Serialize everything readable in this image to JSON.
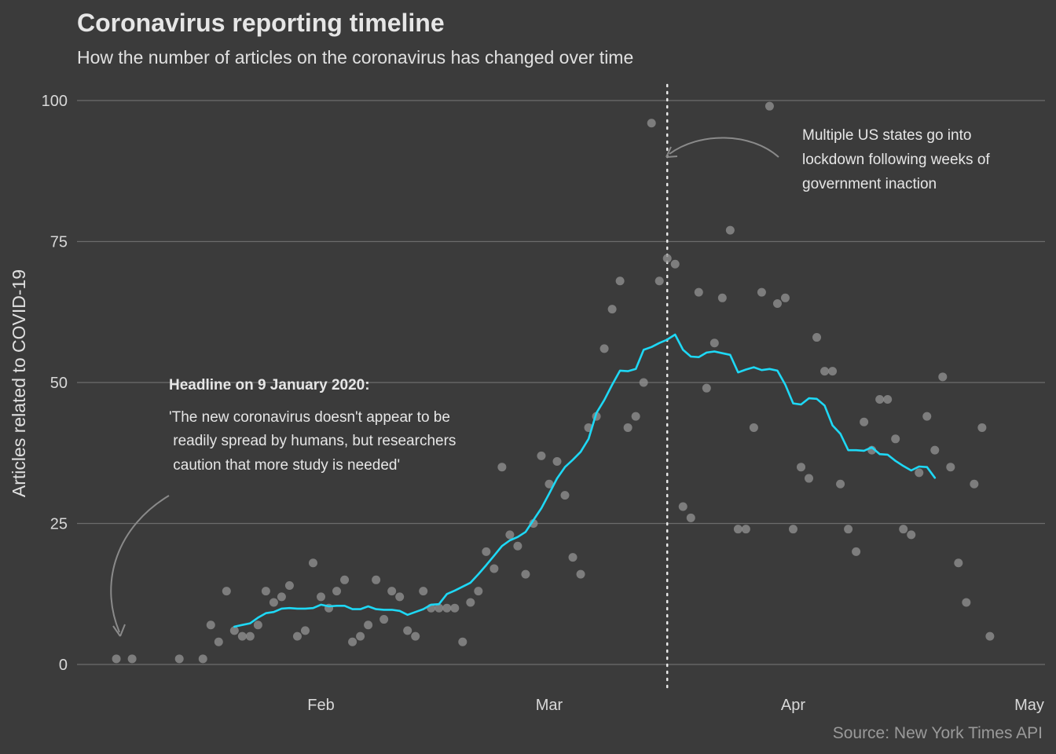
{
  "chart_data": {
    "type": "scatter",
    "title": "Coronavirus reporting timeline",
    "subtitle": "How the number of articles on the coronavirus has changed over time",
    "ylabel": "Articles related to COVID-19",
    "xlabel": "",
    "ylim": [
      0,
      100
    ],
    "yticks": [
      "0",
      "25",
      "50",
      "75",
      "100"
    ],
    "xticks": [
      {
        "label": "Feb",
        "date": "2020-02-01"
      },
      {
        "label": "Mar",
        "date": "2020-03-01"
      },
      {
        "label": "Apr",
        "date": "2020-04-01"
      },
      {
        "label": "May",
        "date": "2020-05-01"
      }
    ],
    "xlim": [
      "2020-01-01",
      "2020-05-03"
    ],
    "grid": true,
    "colors": {
      "background": "#3b3b3b",
      "points": "#8f8f8f",
      "line": "#1ed8f5",
      "grid": "#6c6c6c",
      "text": "#e6e6e6",
      "caption": "#9a9a9a"
    },
    "series": [
      {
        "kind": "points",
        "points": [
          [
            "2020-01-06",
            1
          ],
          [
            "2020-01-08",
            1
          ],
          [
            "2020-01-14",
            1
          ],
          [
            "2020-01-17",
            1
          ],
          [
            "2020-01-18",
            7
          ],
          [
            "2020-01-19",
            4
          ],
          [
            "2020-01-20",
            13
          ],
          [
            "2020-01-21",
            6
          ],
          [
            "2020-01-22",
            5
          ],
          [
            "2020-01-23",
            5
          ],
          [
            "2020-01-24",
            7
          ],
          [
            "2020-01-25",
            13
          ],
          [
            "2020-01-26",
            11
          ],
          [
            "2020-01-27",
            12
          ],
          [
            "2020-01-28",
            14
          ],
          [
            "2020-01-29",
            5
          ],
          [
            "2020-01-30",
            6
          ],
          [
            "2020-01-31",
            18
          ],
          [
            "2020-02-01",
            12
          ],
          [
            "2020-02-02",
            10
          ],
          [
            "2020-02-03",
            13
          ],
          [
            "2020-02-04",
            15
          ],
          [
            "2020-02-05",
            4
          ],
          [
            "2020-02-06",
            5
          ],
          [
            "2020-02-07",
            7
          ],
          [
            "2020-02-08",
            15
          ],
          [
            "2020-02-09",
            8
          ],
          [
            "2020-02-10",
            13
          ],
          [
            "2020-02-11",
            12
          ],
          [
            "2020-02-12",
            6
          ],
          [
            "2020-02-13",
            5
          ],
          [
            "2020-02-14",
            13
          ],
          [
            "2020-02-15",
            10
          ],
          [
            "2020-02-16",
            10
          ],
          [
            "2020-02-17",
            10
          ],
          [
            "2020-02-18",
            10
          ],
          [
            "2020-02-19",
            4
          ],
          [
            "2020-02-20",
            11
          ],
          [
            "2020-02-21",
            13
          ],
          [
            "2020-02-22",
            20
          ],
          [
            "2020-02-23",
            17
          ],
          [
            "2020-02-24",
            35
          ],
          [
            "2020-02-25",
            23
          ],
          [
            "2020-02-26",
            21
          ],
          [
            "2020-02-27",
            16
          ],
          [
            "2020-02-28",
            25
          ],
          [
            "2020-02-29",
            37
          ],
          [
            "2020-03-01",
            32
          ],
          [
            "2020-03-02",
            36
          ],
          [
            "2020-03-03",
            30
          ],
          [
            "2020-03-04",
            19
          ],
          [
            "2020-03-05",
            16
          ],
          [
            "2020-03-06",
            42
          ],
          [
            "2020-03-07",
            44
          ],
          [
            "2020-03-08",
            56
          ],
          [
            "2020-03-09",
            63
          ],
          [
            "2020-03-10",
            68
          ],
          [
            "2020-03-11",
            42
          ],
          [
            "2020-03-12",
            44
          ],
          [
            "2020-03-13",
            50
          ],
          [
            "2020-03-14",
            96
          ],
          [
            "2020-03-15",
            68
          ],
          [
            "2020-03-16",
            72
          ],
          [
            "2020-03-17",
            71
          ],
          [
            "2020-03-18",
            28
          ],
          [
            "2020-03-19",
            26
          ],
          [
            "2020-03-20",
            66
          ],
          [
            "2020-03-21",
            49
          ],
          [
            "2020-03-22",
            57
          ],
          [
            "2020-03-23",
            65
          ],
          [
            "2020-03-24",
            77
          ],
          [
            "2020-03-25",
            24
          ],
          [
            "2020-03-26",
            24
          ],
          [
            "2020-03-27",
            42
          ],
          [
            "2020-03-28",
            66
          ],
          [
            "2020-03-29",
            99
          ],
          [
            "2020-03-30",
            64
          ],
          [
            "2020-03-31",
            65
          ],
          [
            "2020-04-01",
            24
          ],
          [
            "2020-04-02",
            35
          ],
          [
            "2020-04-03",
            33
          ],
          [
            "2020-04-04",
            58
          ],
          [
            "2020-04-05",
            52
          ],
          [
            "2020-04-06",
            52
          ],
          [
            "2020-04-07",
            32
          ],
          [
            "2020-04-08",
            24
          ],
          [
            "2020-04-09",
            20
          ],
          [
            "2020-04-10",
            43
          ],
          [
            "2020-04-11",
            38
          ],
          [
            "2020-04-12",
            47
          ],
          [
            "2020-04-13",
            47
          ],
          [
            "2020-04-14",
            40
          ],
          [
            "2020-04-15",
            24
          ],
          [
            "2020-04-16",
            23
          ],
          [
            "2020-04-17",
            34
          ],
          [
            "2020-04-18",
            44
          ],
          [
            "2020-04-19",
            38
          ],
          [
            "2020-04-20",
            51
          ],
          [
            "2020-04-21",
            35
          ],
          [
            "2020-04-22",
            18
          ],
          [
            "2020-04-23",
            11
          ],
          [
            "2020-04-24",
            32
          ],
          [
            "2020-04-25",
            42
          ],
          [
            "2020-04-26",
            5
          ]
        ]
      },
      {
        "kind": "line",
        "points": [
          [
            "2020-01-21",
            6.7
          ],
          [
            "2020-01-22",
            7.0
          ],
          [
            "2020-01-23",
            7.3
          ],
          [
            "2020-01-24",
            8.3
          ],
          [
            "2020-01-25",
            9.1
          ],
          [
            "2020-01-26",
            9.3
          ],
          [
            "2020-01-27",
            9.9
          ],
          [
            "2020-01-28",
            10.0
          ],
          [
            "2020-01-29",
            9.9
          ],
          [
            "2020-01-30",
            9.9
          ],
          [
            "2020-01-31",
            10.0
          ],
          [
            "2020-02-01",
            10.6
          ],
          [
            "2020-02-02",
            10.3
          ],
          [
            "2020-02-03",
            10.4
          ],
          [
            "2020-02-04",
            10.4
          ],
          [
            "2020-02-05",
            9.8
          ],
          [
            "2020-02-06",
            9.8
          ],
          [
            "2020-02-07",
            10.3
          ],
          [
            "2020-02-08",
            9.8
          ],
          [
            "2020-02-09",
            9.7
          ],
          [
            "2020-02-10",
            9.7
          ],
          [
            "2020-02-11",
            9.5
          ],
          [
            "2020-02-12",
            8.8
          ],
          [
            "2020-02-13",
            9.3
          ],
          [
            "2020-02-14",
            9.8
          ],
          [
            "2020-02-15",
            10.6
          ],
          [
            "2020-02-16",
            10.7
          ],
          [
            "2020-02-17",
            12.5
          ],
          [
            "2020-02-18",
            13.1
          ],
          [
            "2020-02-19",
            13.8
          ],
          [
            "2020-02-20",
            14.5
          ],
          [
            "2020-02-21",
            16.0
          ],
          [
            "2020-02-22",
            17.6
          ],
          [
            "2020-02-23",
            19.3
          ],
          [
            "2020-02-24",
            21.0
          ],
          [
            "2020-02-25",
            22.0
          ],
          [
            "2020-02-26",
            22.6
          ],
          [
            "2020-02-27",
            23.5
          ],
          [
            "2020-02-28",
            25.6
          ],
          [
            "2020-02-29",
            27.7
          ],
          [
            "2020-03-01",
            30.3
          ],
          [
            "2020-03-02",
            33.0
          ],
          [
            "2020-03-03",
            35.0
          ],
          [
            "2020-03-04",
            36.3
          ],
          [
            "2020-03-05",
            37.7
          ],
          [
            "2020-03-06",
            40.0
          ],
          [
            "2020-03-07",
            44.6
          ],
          [
            "2020-03-08",
            46.9
          ],
          [
            "2020-03-09",
            49.6
          ],
          [
            "2020-03-10",
            52.1
          ],
          [
            "2020-03-11",
            52.0
          ],
          [
            "2020-03-12",
            52.4
          ],
          [
            "2020-03-13",
            55.8
          ],
          [
            "2020-03-14",
            56.3
          ],
          [
            "2020-03-15",
            57.0
          ],
          [
            "2020-03-16",
            57.6
          ],
          [
            "2020-03-17",
            58.5
          ],
          [
            "2020-03-18",
            55.8
          ],
          [
            "2020-03-19",
            54.6
          ],
          [
            "2020-03-20",
            54.5
          ],
          [
            "2020-03-21",
            55.3
          ],
          [
            "2020-03-22",
            55.5
          ],
          [
            "2020-03-23",
            55.2
          ],
          [
            "2020-03-24",
            54.9
          ],
          [
            "2020-03-25",
            51.8
          ],
          [
            "2020-03-26",
            52.3
          ],
          [
            "2020-03-27",
            52.7
          ],
          [
            "2020-03-28",
            52.2
          ],
          [
            "2020-03-29",
            52.4
          ],
          [
            "2020-03-30",
            52.1
          ],
          [
            "2020-03-31",
            49.6
          ],
          [
            "2020-04-01",
            46.3
          ],
          [
            "2020-04-02",
            46.1
          ],
          [
            "2020-04-03",
            47.2
          ],
          [
            "2020-04-04",
            47.1
          ],
          [
            "2020-04-05",
            45.9
          ],
          [
            "2020-04-06",
            42.4
          ],
          [
            "2020-04-07",
            40.9
          ],
          [
            "2020-04-08",
            38.0
          ],
          [
            "2020-04-09",
            38.0
          ],
          [
            "2020-04-10",
            37.9
          ],
          [
            "2020-04-11",
            38.5
          ],
          [
            "2020-04-12",
            37.3
          ],
          [
            "2020-04-13",
            37.2
          ],
          [
            "2020-04-14",
            36.1
          ],
          [
            "2020-04-15",
            35.2
          ],
          [
            "2020-04-16",
            34.4
          ],
          [
            "2020-04-17",
            35.1
          ],
          [
            "2020-04-18",
            35.0
          ],
          [
            "2020-04-19",
            33.1
          ]
        ]
      }
    ],
    "vline": {
      "date": "2020-03-16",
      "style": "dotted"
    },
    "annotations": [
      {
        "id": "lockdown",
        "lines": [
          "Multiple US states go into",
          "lockdown following weeks of",
          "government inaction"
        ]
      },
      {
        "id": "headline",
        "heading": "Headline on 9 January 2020:",
        "lines": [
          "'The new coronavirus doesn't appear to be",
          " readily spread by humans, but researchers",
          " caution that more study is needed'"
        ]
      }
    ],
    "caption": "Source: New York Times API"
  }
}
